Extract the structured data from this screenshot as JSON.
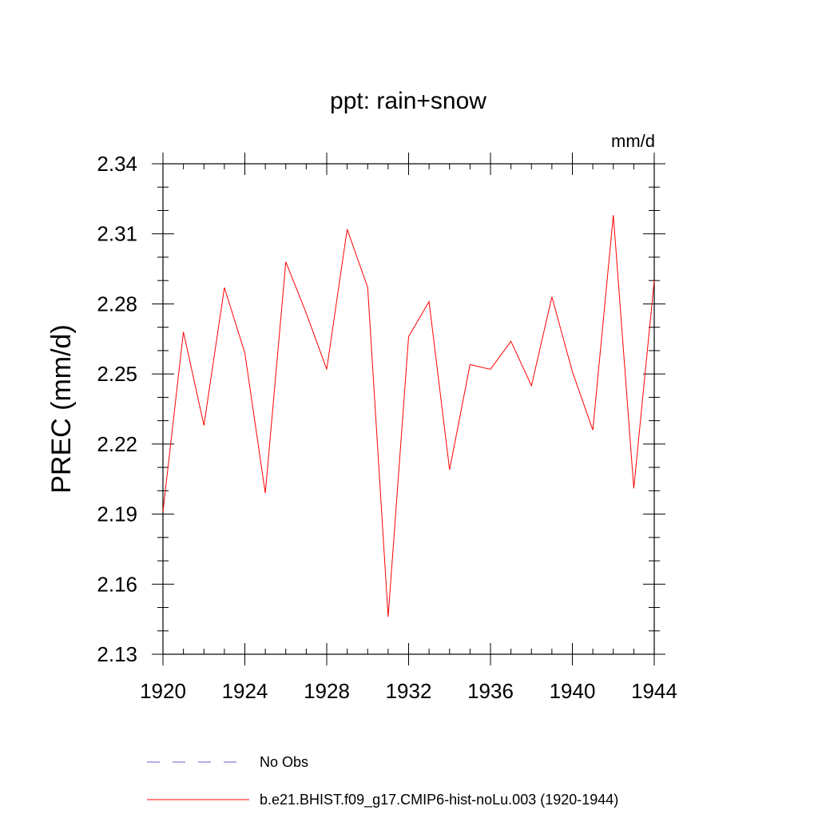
{
  "chart_data": {
    "type": "line",
    "title": "ppt: rain+snow",
    "units_label": "mm/d",
    "ylabel": "PREC  (mm/d)",
    "xlabel": "",
    "xlim": [
      1920,
      1944
    ],
    "ylim": [
      2.13,
      2.34
    ],
    "x_ticks": [
      1920,
      1924,
      1928,
      1932,
      1936,
      1940,
      1944
    ],
    "x_tick_labels": [
      "1920",
      "1924",
      "1928",
      "1932",
      "1936",
      "1940",
      "1944"
    ],
    "y_ticks": [
      2.13,
      2.16,
      2.19,
      2.22,
      2.25,
      2.28,
      2.31,
      2.34
    ],
    "y_tick_labels": [
      "2.13",
      "2.16",
      "2.19",
      "2.22",
      "2.25",
      "2.28",
      "2.31",
      "2.34"
    ],
    "grid": false,
    "legend_position": "bottom",
    "x": [
      1920,
      1921,
      1922,
      1923,
      1924,
      1925,
      1926,
      1927,
      1928,
      1929,
      1930,
      1931,
      1932,
      1933,
      1934,
      1935,
      1936,
      1937,
      1938,
      1939,
      1940,
      1941,
      1942,
      1943,
      1944
    ],
    "series": [
      {
        "name": "b.e21.BHIST.f09_g17.CMIP6-hist-noLu.003 (1920-1944)",
        "color": "#ff0000",
        "dash": "solid",
        "values": [
          2.191,
          2.268,
          2.228,
          2.287,
          2.259,
          2.199,
          2.298,
          2.276,
          2.252,
          2.312,
          2.287,
          2.146,
          2.266,
          2.281,
          2.209,
          2.254,
          2.252,
          2.264,
          2.245,
          2.283,
          2.251,
          2.226,
          2.318,
          2.201,
          2.29
        ]
      }
    ],
    "legend": [
      {
        "label": "No Obs",
        "color": "#6a5acd",
        "dash": "dashed"
      },
      {
        "label": "b.e21.BHIST.f09_g17.CMIP6-hist-noLu.003 (1920-1944)",
        "color": "#ff0000",
        "dash": "solid"
      }
    ]
  }
}
